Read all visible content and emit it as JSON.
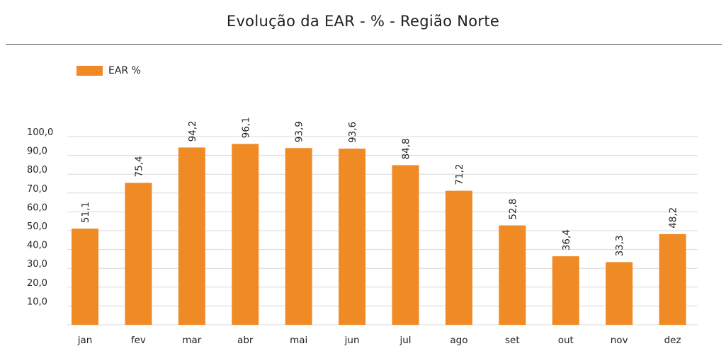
{
  "chart_data": {
    "type": "bar",
    "title": "Evolução da EAR - % - Região Norte",
    "xlabel": "",
    "ylabel": "",
    "categories": [
      "jan",
      "fev",
      "mar",
      "abr",
      "mai",
      "jun",
      "jul",
      "ago",
      "set",
      "out",
      "nov",
      "dez"
    ],
    "series": [
      {
        "name": "EAR %",
        "color": "#EF8A25",
        "values": [
          51.1,
          75.4,
          94.2,
          96.1,
          93.9,
          93.6,
          84.8,
          71.2,
          52.8,
          36.4,
          33.3,
          48.2
        ],
        "labels": [
          "51,1",
          "75,4",
          "94,2",
          "96,1",
          "93,9",
          "93,6",
          "84,8",
          "71,2",
          "52,8",
          "36,4",
          "33,3",
          "48,2"
        ]
      }
    ],
    "ylim": [
      0,
      100
    ],
    "yticks": [
      10,
      20,
      30,
      40,
      50,
      60,
      70,
      80,
      90,
      100
    ],
    "ytick_labels": [
      "10,0",
      "20,0",
      "30,0",
      "40,0",
      "50,0",
      "60,0",
      "70,0",
      "80,0",
      "90,0",
      "100,0"
    ],
    "grid": true,
    "legend_position": "top-left",
    "gridline_color": "#d9d9d9"
  }
}
